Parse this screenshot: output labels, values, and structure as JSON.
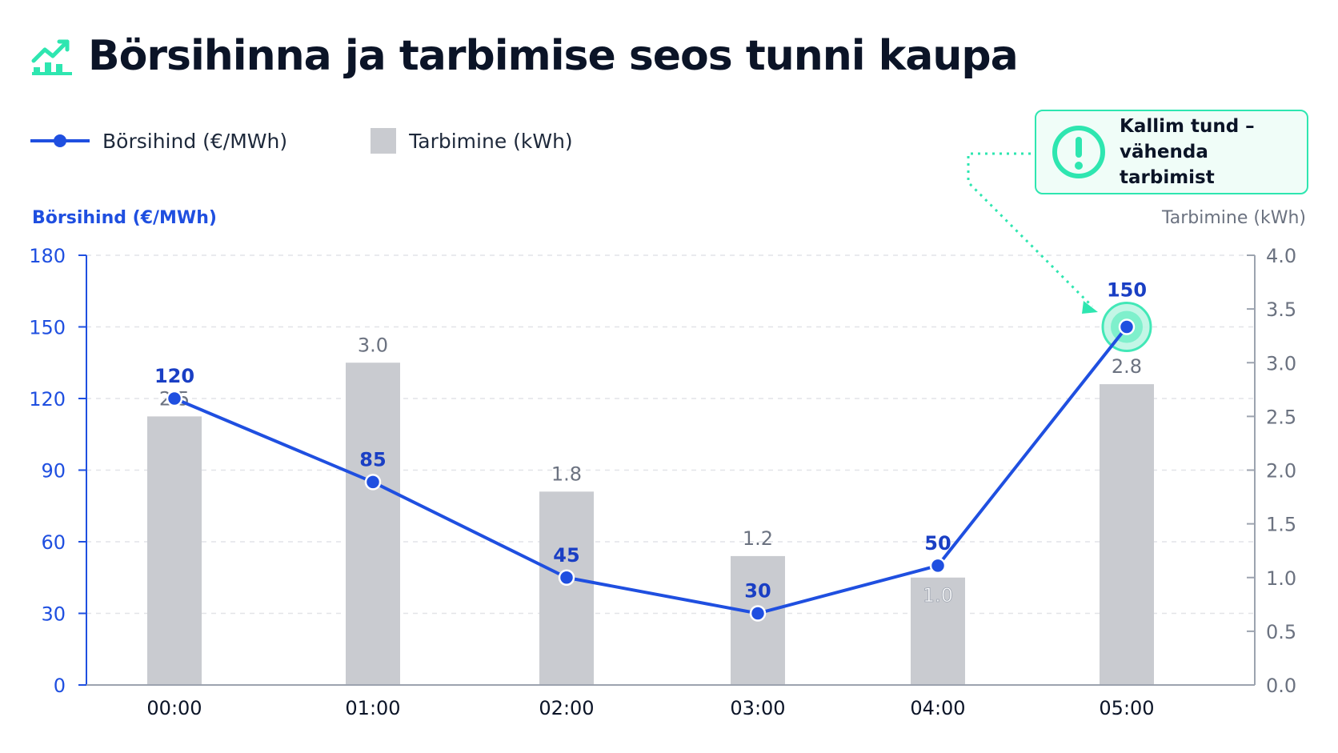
{
  "title": "Börsihinna ja tarbimise seos tunni kaupa",
  "legend": {
    "price_label": "Börsihind (€/MWh)",
    "consumption_label": "Tarbimine (kWh)"
  },
  "callout": {
    "text": "Kallim tund – vähenda tarbimist",
    "icon": "alert-circle-icon",
    "color": "#2ee6b0"
  },
  "colors": {
    "price": "#1f4fe0",
    "bars": "#c9cbd0",
    "accent": "#2ee6b0",
    "left_axis": "#1f4fe0",
    "right_axis": "#6b7280"
  },
  "chart_data": {
    "type": "bar+line",
    "categories": [
      "00:00",
      "01:00",
      "02:00",
      "03:00",
      "04:00",
      "05:00"
    ],
    "series": [
      {
        "name": "Börsihind (€/MWh)",
        "type": "line",
        "axis": "left",
        "values": [
          120,
          85,
          45,
          30,
          50,
          150
        ]
      },
      {
        "name": "Tarbimine (kWh)",
        "type": "bar",
        "axis": "right",
        "values": [
          2.5,
          3.0,
          1.8,
          1.2,
          1.0,
          2.8
        ]
      }
    ],
    "ylabel_left": "Börsihind (€/MWh)",
    "ylabel_right": "Tarbimine (kWh)",
    "ylim_left": [
      0,
      180
    ],
    "ylim_right": [
      0,
      4.0
    ],
    "yticks_left": [
      "0",
      "30",
      "60",
      "90",
      "120",
      "150",
      "180"
    ],
    "yticks_right": [
      "0.0",
      "0.5",
      "1.0",
      "1.5",
      "2.0",
      "2.5",
      "3.0",
      "3.5",
      "4.0"
    ],
    "price_labels": [
      "120",
      "85",
      "45",
      "30",
      "50",
      "150"
    ],
    "bar_labels": [
      "2.5",
      "3.0",
      "1.8",
      "1.2",
      "1.0",
      "2.8"
    ],
    "grid": true,
    "highlight_index": 5
  }
}
